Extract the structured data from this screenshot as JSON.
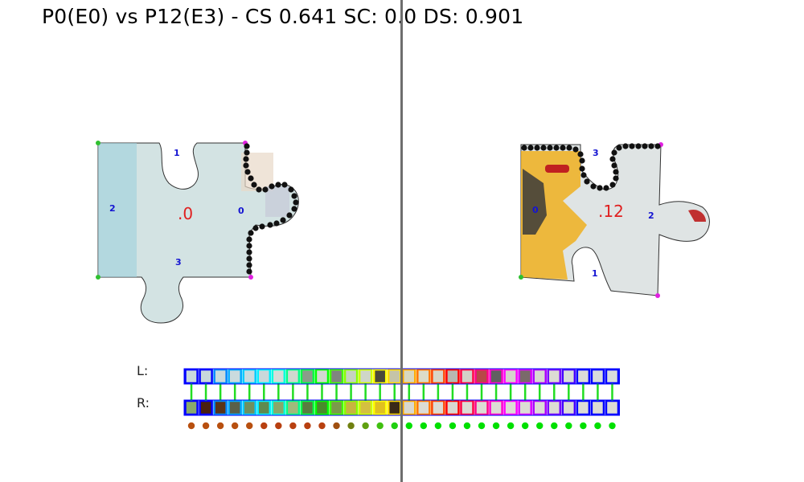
{
  "header": {
    "title": "P0(E0) vs P12(E3) - CS 0.641 SC: 0.0 DS: 0.901"
  },
  "left_piece": {
    "id_label": ".0",
    "edges": [
      "0",
      "1",
      "2",
      "3"
    ],
    "fill": "#d3e3e3",
    "edge_fill": "#7fc4d4"
  },
  "right_piece": {
    "id_label": ".12",
    "edges": [
      "0",
      "1",
      "2",
      "3"
    ],
    "fill": "#dfe4e4",
    "accent": "#f0b020"
  },
  "strips": {
    "left_label": "L:",
    "right_label": "R:",
    "left_border_colors": [
      "#0000ff",
      "#0000ff",
      "#0088ff",
      "#00aaff",
      "#00ccff",
      "#00eeff",
      "#00ffdd",
      "#00ff88",
      "#00ff44",
      "#00ff00",
      "#44ff00",
      "#88ff00",
      "#ccff00",
      "#ffff00",
      "#ffdd00",
      "#ffaa00",
      "#ff7700",
      "#ff4400",
      "#ff0000",
      "#ff0044",
      "#ff0088",
      "#ff00cc",
      "#ff00ff",
      "#dd00ff",
      "#aa00ff",
      "#7700ff",
      "#4400ff",
      "#0000ff",
      "#0000ff",
      "#0000ff"
    ],
    "left_cell_colors": [
      "#c8d8dc",
      "#c8d8dc",
      "#c9dadd",
      "#cadbde",
      "#cbdcdf",
      "#c9d8da",
      "#d6dcd8",
      "#cfd8cf",
      "#8b9c8a",
      "#d2d8d0",
      "#808580",
      "#c6d2c0",
      "#cfd6c8",
      "#4a4a3a",
      "#c5c4a8",
      "#d8d8c0",
      "#dcdcc8",
      "#d8d6c8",
      "#b8b8b0",
      "#d4d0c8",
      "#b84848",
      "#606060",
      "#d6d2cc",
      "#7a6a6a",
      "#d8d8d0",
      "#dcdcd4",
      "#d8dcd8",
      "#dcdcd8",
      "#d8dcdc",
      "#d8dcdc"
    ],
    "right_cell_colors": [
      "#8aab6a",
      "#4a2010",
      "#5a3418",
      "#5a6048",
      "#70905e",
      "#5e8a4e",
      "#8aa86a",
      "#a0ba7c",
      "#5a7c40",
      "#4a8a2c",
      "#7a9a4a",
      "#c8b440",
      "#d4c040",
      "#e0c020",
      "#3a2a18",
      "#d8d8d0",
      "#dcdcd4",
      "#dcdcd4",
      "#d8d8d0",
      "#dcdcd4",
      "#dcdcd4",
      "#dcdcd4",
      "#dcdcd4",
      "#dcdcd4",
      "#dcdcd4",
      "#dcdcd4",
      "#dcdcd4",
      "#dcdcd4",
      "#dcdcd4",
      "#dcdcd4"
    ],
    "dot_colors": [
      "#b85010",
      "#b85010",
      "#b85010",
      "#b85010",
      "#b85010",
      "#b84010",
      "#b84010",
      "#b84010",
      "#b84010",
      "#b84010",
      "#a05010",
      "#708010",
      "#60a010",
      "#40c010",
      "#20d010",
      "#00e000",
      "#00e000",
      "#00e000",
      "#00e000",
      "#00e000",
      "#00e000",
      "#00e000",
      "#00e000",
      "#00e000",
      "#00e000",
      "#00e000",
      "#00e000",
      "#00e000",
      "#00e000",
      "#00e000"
    ]
  }
}
